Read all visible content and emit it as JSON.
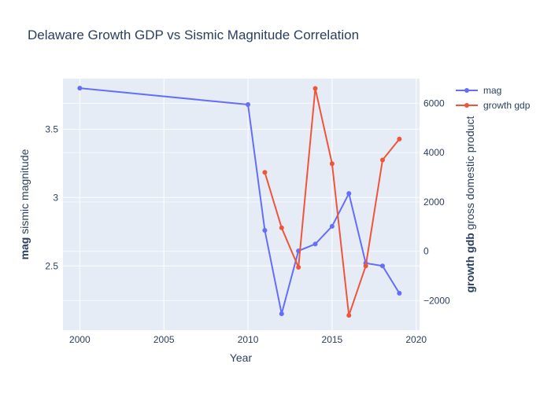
{
  "chart_data": {
    "type": "line",
    "title": "Delaware Growth GDP vs Sismic Magnitude Correlation",
    "xlabel": "Year",
    "ylabel_bold": "mag",
    "ylabel_rest": " sismic magnitude",
    "y2label_bold": "growth gdb",
    "y2label_rest": " gross domestic product",
    "xlim": [
      1999,
      2020.2
    ],
    "ylim": [
      2.03,
      3.87
    ],
    "y2lim": [
      -3200,
      7000
    ],
    "xticks": [
      2000,
      2005,
      2010,
      2015,
      2020
    ],
    "yticks": [
      2.5,
      3,
      3.5
    ],
    "y2ticks": [
      -2000,
      0,
      2000,
      4000,
      6000
    ],
    "y2tick_labels": [
      "−2000",
      "0",
      "2000",
      "4000",
      "6000"
    ],
    "grid": true,
    "legend_position": "top-right",
    "series": [
      {
        "name": "mag",
        "axis": "y",
        "color": "#636efa",
        "x": [
          2000,
          2010,
          2011,
          2012,
          2013,
          2014,
          2015,
          2016,
          2017,
          2018,
          2019
        ],
        "y": [
          3.8,
          3.68,
          2.76,
          2.15,
          2.61,
          2.66,
          2.79,
          3.03,
          2.52,
          2.5,
          2.3
        ]
      },
      {
        "name": "growth gdp",
        "axis": "y2",
        "color": "#ef553b",
        "x": [
          2011,
          2012,
          2013,
          2014,
          2015,
          2016,
          2017,
          2018,
          2019
        ],
        "y": [
          3200,
          950,
          -650,
          6600,
          3550,
          -2600,
          -600,
          3700,
          4550
        ]
      }
    ]
  }
}
